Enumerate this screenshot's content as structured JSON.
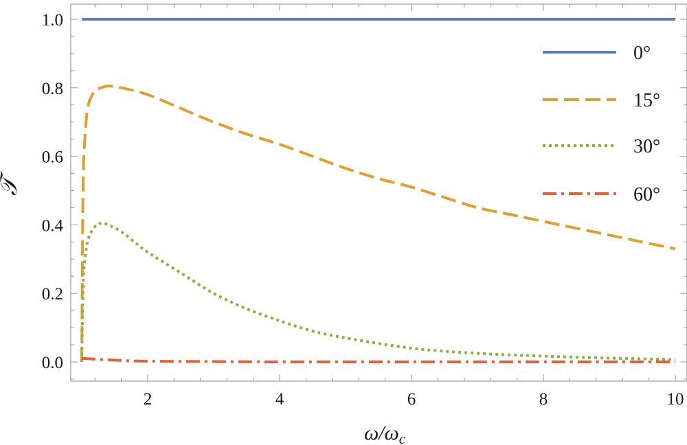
{
  "chart_data": {
    "type": "line",
    "xlabel": "ω/ω_c",
    "xlabel_parts": {
      "main": "ω/ω",
      "sub": "c"
    },
    "ylabel": "𝒯",
    "xlim": [
      0.85,
      10.2
    ],
    "ylim": [
      -0.05,
      1.05
    ],
    "x_ticks": [
      2,
      4,
      6,
      8,
      10
    ],
    "x_tick_labels": [
      "2",
      "4",
      "6",
      "8",
      "10"
    ],
    "y_ticks": [
      0.0,
      0.2,
      0.4,
      0.6,
      0.8,
      1.0
    ],
    "y_tick_labels": [
      "0.0",
      "0.2",
      "0.4",
      "0.6",
      "0.8",
      "1.0"
    ],
    "grid": false,
    "legend_position": "top-right",
    "series": [
      {
        "name": "0°",
        "color": "#5b7db8",
        "dash": "solid",
        "x": [
          1.0,
          2.0,
          3.0,
          4.0,
          5.0,
          6.0,
          7.0,
          8.0,
          9.0,
          10.0
        ],
        "y": [
          1.0,
          1.0,
          1.0,
          1.0,
          1.0,
          1.0,
          1.0,
          1.0,
          1.0,
          1.0
        ]
      },
      {
        "name": "15°",
        "color": "#e0a030",
        "dash": "dashed",
        "x": [
          1.0,
          1.02,
          1.05,
          1.1,
          1.2,
          1.3,
          1.4,
          1.6,
          2.0,
          2.5,
          3.0,
          3.5,
          4.0,
          4.5,
          5.0,
          5.5,
          6.0,
          6.5,
          7.0,
          7.5,
          8.0,
          8.5,
          9.0,
          9.5,
          10.0
        ],
        "y": [
          0.0,
          0.5,
          0.66,
          0.75,
          0.79,
          0.8,
          0.805,
          0.8,
          0.78,
          0.74,
          0.7,
          0.665,
          0.635,
          0.6,
          0.565,
          0.535,
          0.51,
          0.48,
          0.45,
          0.43,
          0.41,
          0.39,
          0.37,
          0.35,
          0.33
        ]
      },
      {
        "name": "30°",
        "color": "#8ab040",
        "dash": "dotted",
        "x": [
          1.0,
          1.02,
          1.05,
          1.1,
          1.2,
          1.3,
          1.4,
          1.6,
          1.8,
          2.0,
          2.5,
          3.0,
          3.5,
          4.0,
          4.5,
          5.0,
          6.0,
          7.0,
          8.0,
          9.0,
          10.0
        ],
        "y": [
          0.0,
          0.22,
          0.3,
          0.36,
          0.395,
          0.405,
          0.4,
          0.38,
          0.35,
          0.32,
          0.26,
          0.2,
          0.155,
          0.12,
          0.09,
          0.07,
          0.04,
          0.025,
          0.017,
          0.011,
          0.007
        ]
      },
      {
        "name": "60°",
        "color": "#e2603a",
        "dash": "dashdot",
        "x": [
          1.0,
          1.05,
          1.2,
          1.5,
          2.0,
          3.0,
          4.0,
          6.0,
          8.0,
          10.0
        ],
        "y": [
          0.01,
          0.01,
          0.008,
          0.005,
          0.002,
          0.001,
          0.0,
          0.0,
          0.0,
          0.0
        ]
      }
    ]
  }
}
